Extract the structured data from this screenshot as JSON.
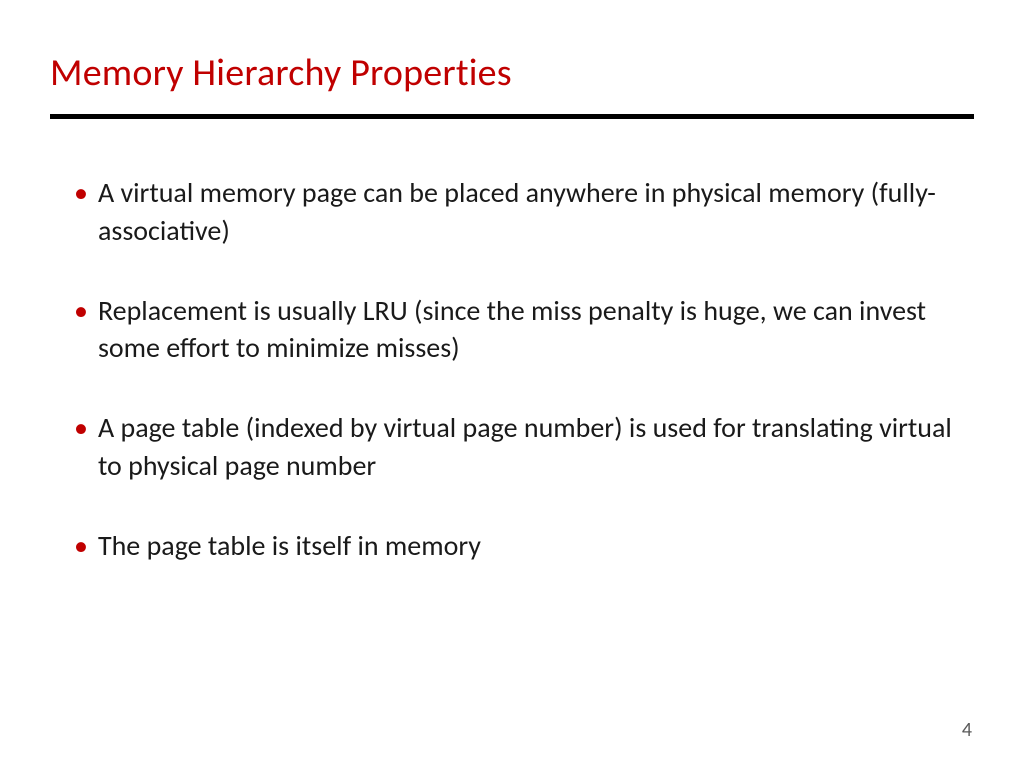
{
  "slide": {
    "title": "Memory Hierarchy Properties",
    "title_color": "#c00000",
    "rule_color": "#000000",
    "bullet_color": "#c00000",
    "text_color": "#1a1a1a",
    "background_color": "#ffffff",
    "title_fontsize": 38,
    "body_fontsize": 28,
    "bullets": [
      "A virtual memory page can be placed anywhere in physical memory (fully-associative)",
      "Replacement is usually LRU (since the miss penalty is huge, we can invest some effort to minimize misses)",
      "A page table (indexed by virtual page number) is used for translating virtual to physical page number",
      "The page table is itself in memory"
    ],
    "page_number": "4"
  }
}
